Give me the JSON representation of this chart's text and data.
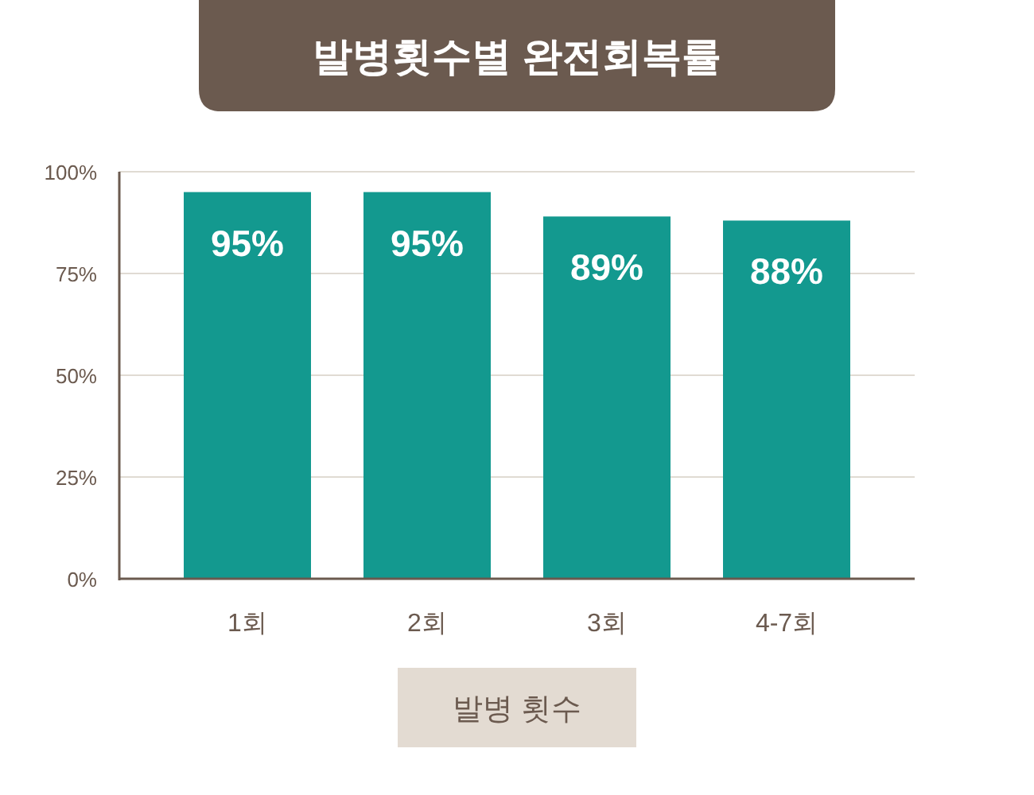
{
  "chart_data": {
    "type": "bar",
    "title": "발병횟수별 완전회복률",
    "xlabel": "발병 횟수",
    "categories": [
      "1회",
      "2회",
      "3회",
      "4-7회"
    ],
    "values": [
      95,
      95,
      89,
      88
    ],
    "color": "#13998f",
    "value_labels": [
      "95%",
      "95%",
      "89%",
      "88%"
    ],
    "ylim": [
      0,
      100
    ],
    "yticks": [
      {
        "value": 0,
        "label": "0%"
      },
      {
        "value": 25,
        "label": "25%"
      },
      {
        "value": 50,
        "label": "50%"
      },
      {
        "value": 75,
        "label": "75%"
      },
      {
        "value": 100,
        "label": "100%"
      }
    ],
    "grid": "y"
  }
}
